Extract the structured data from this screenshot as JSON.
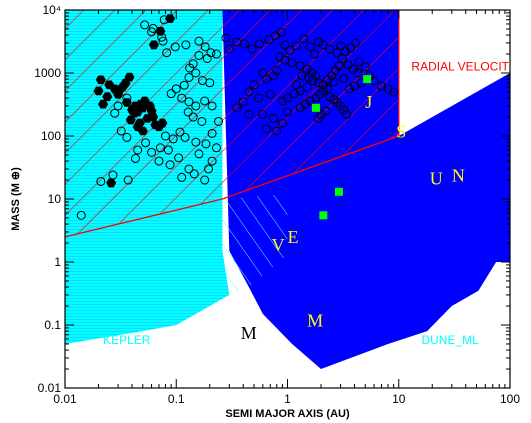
{
  "chart_data": {
    "type": "scatter",
    "title": "",
    "xlabel": "SEMI MAJOR AXIS (AU)",
    "ylabel": "MASS (M ⊕)",
    "x_scale": "log",
    "y_scale": "log",
    "xlim": [
      0.01,
      100
    ],
    "ylim": [
      0.01,
      10000
    ],
    "x_ticks": [
      {
        "value": 0.01,
        "label": "0.01"
      },
      {
        "value": 0.1,
        "label": "0.1"
      },
      {
        "value": 1,
        "label": "1"
      },
      {
        "value": 10,
        "label": "10"
      },
      {
        "value": 100,
        "label": "100"
      }
    ],
    "y_ticks": [
      {
        "value": 0.01,
        "label": "0.01"
      },
      {
        "value": 0.1,
        "label": "0.1"
      },
      {
        "value": 1,
        "label": "1"
      },
      {
        "value": 10,
        "label": "10"
      },
      {
        "value": 100,
        "label": "100"
      },
      {
        "value": 1000,
        "label": "1000"
      },
      {
        "value": 10000,
        "label": "10⁴"
      }
    ],
    "colors": {
      "kepler": "#00ffff",
      "dune_ml": "#0000ff",
      "radial_velocities": "#ff0000",
      "solar_system_giants": "#00ff00",
      "planet_label_inner": "#ffff00",
      "planet_label_outer": "#000000"
    },
    "regions": [
      {
        "name": "KEPLER",
        "label": "KEPLER",
        "color": "#00ffff",
        "boundary": [
          [
            0.01,
            0.05
          ],
          [
            0.05,
            0.08
          ],
          [
            0.1,
            0.1
          ],
          [
            0.2,
            0.2
          ],
          [
            0.3,
            0.3
          ],
          [
            0.26,
            1.5
          ],
          [
            0.26,
            10000
          ],
          [
            0.01,
            10000
          ]
        ]
      },
      {
        "name": "DUNE_ML",
        "label": "DUNE_ML",
        "color": "#0000ff",
        "boundary": [
          [
            0.26,
            10000
          ],
          [
            10,
            10000
          ],
          [
            10,
            100
          ],
          [
            100,
            1000
          ],
          [
            100,
            1
          ],
          [
            75,
            1
          ],
          [
            52,
            0.35
          ],
          [
            30,
            0.2
          ],
          [
            18,
            0.08
          ],
          [
            8,
            0.05
          ],
          [
            2,
            0.02
          ],
          [
            1.1,
            0.05
          ],
          [
            0.6,
            0.15
          ],
          [
            0.45,
            0.4
          ],
          [
            0.3,
            1.5
          ]
        ]
      },
      {
        "name": "RADIAL VELOCITIES",
        "label": "RADIAL VELOCITIES",
        "color": "#ff0000",
        "boundary": [
          [
            0.01,
            2.5
          ],
          [
            0.26,
            10
          ],
          [
            10,
            100
          ],
          [
            10,
            10000
          ],
          [
            0.01,
            10000
          ]
        ]
      }
    ],
    "series": [
      {
        "name": "",
        "marker": "filled-hexagon",
        "color": "#000000",
        "points": [
          [
            0.088,
            7300
          ],
          [
            0.072,
            4600
          ],
          [
            0.063,
            2800
          ],
          [
            0.025,
            650
          ],
          [
            0.021,
            780
          ],
          [
            0.02,
            520
          ],
          [
            0.022,
            320
          ],
          [
            0.024,
            420
          ],
          [
            0.028,
            560
          ],
          [
            0.033,
            600
          ],
          [
            0.031,
            540
          ],
          [
            0.035,
            690
          ],
          [
            0.038,
            860
          ],
          [
            0.03,
            460
          ],
          [
            0.036,
            340
          ],
          [
            0.043,
            300
          ],
          [
            0.045,
            240
          ],
          [
            0.04,
            260
          ],
          [
            0.048,
            320
          ],
          [
            0.052,
            360
          ],
          [
            0.039,
            180
          ],
          [
            0.047,
            160
          ],
          [
            0.055,
            190
          ],
          [
            0.062,
            200
          ],
          [
            0.05,
            280
          ],
          [
            0.058,
            300
          ],
          [
            0.06,
            250
          ],
          [
            0.042,
            230
          ],
          [
            0.045,
            140
          ],
          [
            0.05,
            120
          ],
          [
            0.065,
            150
          ],
          [
            0.07,
            140
          ],
          [
            0.075,
            160
          ],
          [
            0.026,
            18
          ]
        ]
      },
      {
        "name": "",
        "marker": "open-circle",
        "color": "#000000",
        "points": [
          [
            0.052,
            5800
          ],
          [
            0.078,
            7000
          ],
          [
            0.062,
            5100
          ],
          [
            0.06,
            4500
          ],
          [
            0.074,
            3700
          ],
          [
            0.076,
            3200
          ],
          [
            0.082,
            2100
          ],
          [
            0.098,
            2600
          ],
          [
            0.122,
            2800
          ],
          [
            0.132,
            1200
          ],
          [
            0.16,
            3200
          ],
          [
            0.182,
            2600
          ],
          [
            0.205,
            2100
          ],
          [
            0.23,
            2000
          ],
          [
            0.16,
            1900
          ],
          [
            0.19,
            1700
          ],
          [
            0.142,
            1400
          ],
          [
            0.15,
            1000
          ],
          [
            0.172,
            760
          ],
          [
            0.2,
            700
          ],
          [
            0.13,
            850
          ],
          [
            0.118,
            640
          ],
          [
            0.1,
            560
          ],
          [
            0.09,
            470
          ],
          [
            0.112,
            400
          ],
          [
            0.13,
            350
          ],
          [
            0.15,
            300
          ],
          [
            0.18,
            360
          ],
          [
            0.21,
            300
          ],
          [
            0.128,
            240
          ],
          [
            0.142,
            200
          ],
          [
            0.17,
            170
          ],
          [
            0.08,
            100
          ],
          [
            0.094,
            90
          ],
          [
            0.108,
            115
          ],
          [
            0.12,
            95
          ],
          [
            0.15,
            80
          ],
          [
            0.185,
            75
          ],
          [
            0.21,
            40
          ],
          [
            0.195,
            30
          ],
          [
            0.13,
            30
          ],
          [
            0.105,
            45
          ],
          [
            0.085,
            60
          ],
          [
            0.072,
            65
          ],
          [
            0.053,
            78
          ],
          [
            0.036,
            400
          ],
          [
            0.03,
            300
          ],
          [
            0.028,
            230
          ],
          [
            0.032,
            120
          ],
          [
            0.036,
            95
          ],
          [
            0.045,
            60
          ],
          [
            0.07,
            40
          ],
          [
            0.088,
            35
          ],
          [
            0.112,
            22
          ],
          [
            0.145,
            25
          ],
          [
            0.18,
            20
          ],
          [
            0.037,
            20
          ],
          [
            0.027,
            24
          ],
          [
            0.021,
            19
          ],
          [
            0.014,
            5.5
          ],
          [
            0.043,
            44
          ],
          [
            0.06,
            55
          ],
          [
            0.16,
            52
          ],
          [
            0.21,
            110
          ],
          [
            0.24,
            170
          ],
          [
            0.23,
            65
          ],
          [
            0.28,
            3600
          ],
          [
            0.3,
            2400
          ],
          [
            0.35,
            3100
          ],
          [
            0.41,
            2900
          ],
          [
            0.48,
            2400
          ],
          [
            0.56,
            2900
          ],
          [
            0.68,
            3400
          ],
          [
            0.78,
            3900
          ],
          [
            0.88,
            4400
          ],
          [
            0.95,
            2800
          ],
          [
            1.05,
            2300
          ],
          [
            1.2,
            2700
          ],
          [
            1.4,
            3500
          ],
          [
            1.6,
            2600
          ],
          [
            1.75,
            2000
          ],
          [
            1.9,
            3100
          ],
          [
            2.1,
            2800
          ],
          [
            2.4,
            2400
          ],
          [
            2.8,
            2100
          ],
          [
            3.0,
            2700
          ],
          [
            3.3,
            2200
          ],
          [
            3.7,
            2500
          ],
          [
            4.1,
            3000
          ],
          [
            4.4,
            1500
          ],
          [
            0.85,
            1800
          ],
          [
            0.95,
            1600
          ],
          [
            1.1,
            1450
          ],
          [
            1.3,
            1300
          ],
          [
            1.5,
            1150
          ],
          [
            1.65,
            1000
          ],
          [
            1.8,
            900
          ],
          [
            1.55,
            850
          ],
          [
            1.7,
            760
          ],
          [
            1.9,
            700
          ],
          [
            2.1,
            640
          ],
          [
            2.3,
            560
          ],
          [
            2.1,
            520
          ],
          [
            1.95,
            460
          ],
          [
            1.8,
            400
          ],
          [
            1.6,
            360
          ],
          [
            1.45,
            320
          ],
          [
            1.3,
            280
          ],
          [
            1.5,
            600
          ],
          [
            1.3,
            520
          ],
          [
            1.15,
            470
          ],
          [
            1.0,
            400
          ],
          [
            0.9,
            360
          ],
          [
            2.4,
            420
          ],
          [
            2.6,
            380
          ],
          [
            2.8,
            340
          ],
          [
            3.0,
            300
          ],
          [
            3.2,
            260
          ],
          [
            3.4,
            220
          ],
          [
            2.2,
            250
          ],
          [
            2.0,
            220
          ],
          [
            1.9,
            190
          ],
          [
            0.65,
            800
          ],
          [
            0.75,
            900
          ],
          [
            0.8,
            1100
          ],
          [
            0.6,
            1000
          ],
          [
            0.5,
            650
          ],
          [
            0.45,
            500
          ],
          [
            0.55,
            400
          ],
          [
            0.7,
            460
          ],
          [
            0.4,
            350
          ],
          [
            0.35,
            280
          ],
          [
            0.45,
            220
          ],
          [
            0.6,
            220
          ],
          [
            0.75,
            190
          ],
          [
            0.9,
            160
          ],
          [
            1.0,
            240
          ],
          [
            0.8,
            120
          ],
          [
            0.65,
            130
          ],
          [
            1.2,
            650
          ],
          [
            1.35,
            900
          ],
          [
            2.5,
            900
          ],
          [
            2.7,
            1100
          ],
          [
            2.9,
            1300
          ],
          [
            3.1,
            1700
          ],
          [
            3.5,
            1350
          ],
          [
            3.9,
            1150
          ],
          [
            4.3,
            1000
          ],
          [
            5.0,
            1250
          ],
          [
            5.5,
            900
          ],
          [
            6.0,
            750
          ],
          [
            7.0,
            620
          ],
          [
            8.0,
            560
          ],
          [
            9.0,
            500
          ],
          [
            4.6,
            700
          ],
          [
            4.0,
            620
          ],
          [
            3.6,
            560
          ],
          [
            2.6,
            720
          ],
          [
            2.3,
            780
          ],
          [
            3.2,
            820
          ]
        ]
      },
      {
        "name": "",
        "marker": "filled-square",
        "color": "#00ff00",
        "points": [
          [
            5.2,
            800
          ],
          [
            1.8,
            280
          ],
          [
            2.9,
            13
          ],
          [
            2.1,
            5.5
          ]
        ]
      }
    ],
    "annotations": [
      {
        "text": "RADIAL VELOCITIES",
        "x": 13,
        "y": 1100,
        "color": "#ff0000"
      },
      {
        "text": "KEPLER",
        "x": 0.022,
        "y": 0.05,
        "color": "#00ffff"
      },
      {
        "text": "DUNE_ML",
        "x": 16,
        "y": 0.05,
        "color": "#00ffff"
      },
      {
        "text": "J",
        "x": 5.0,
        "y": 280,
        "color": "#ffff00"
      },
      {
        "text": "S",
        "x": 9.5,
        "y": 95,
        "color": "#ffff00"
      },
      {
        "text": "U",
        "x": 19,
        "y": 17,
        "color": "#ffff00"
      },
      {
        "text": "N",
        "x": 30,
        "y": 19,
        "color": "#ffff00"
      },
      {
        "text": "V",
        "x": 0.72,
        "y": 1.5,
        "color": "#ffff00"
      },
      {
        "text": "E",
        "x": 1.0,
        "y": 2.0,
        "color": "#ffff00"
      },
      {
        "text": "M",
        "x": 1.5,
        "y": 0.095,
        "color": "#ffff00"
      },
      {
        "text": "M",
        "x": 0.38,
        "y": 0.06,
        "color": "#000000"
      }
    ],
    "grid": false,
    "legend": "none"
  }
}
